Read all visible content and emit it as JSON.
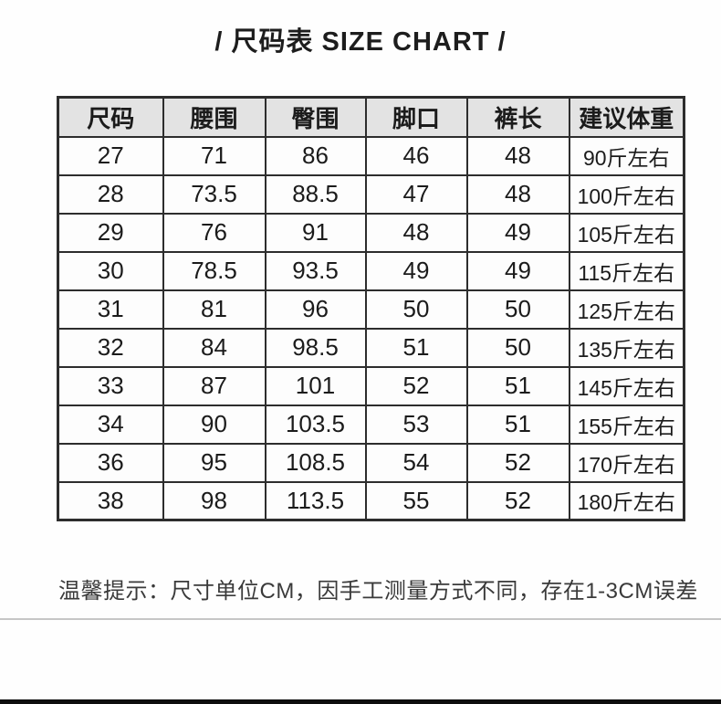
{
  "title": "/ 尺码表 SIZE CHART /",
  "chart_data": {
    "type": "table",
    "title": "/ 尺码表 SIZE CHART /",
    "columns": [
      "尺码",
      "腰围",
      "臀围",
      "脚口",
      "裤长",
      "建议体重"
    ],
    "rows": [
      [
        "27",
        "71",
        "86",
        "46",
        "48",
        "90斤左右"
      ],
      [
        "28",
        "73.5",
        "88.5",
        "47",
        "48",
        "100斤左右"
      ],
      [
        "29",
        "76",
        "91",
        "48",
        "49",
        "105斤左右"
      ],
      [
        "30",
        "78.5",
        "93.5",
        "49",
        "49",
        "115斤左右"
      ],
      [
        "31",
        "81",
        "96",
        "50",
        "50",
        "125斤左右"
      ],
      [
        "32",
        "84",
        "98.5",
        "51",
        "50",
        "135斤左右"
      ],
      [
        "33",
        "87",
        "101",
        "52",
        "51",
        "145斤左右"
      ],
      [
        "34",
        "90",
        "103.5",
        "53",
        "51",
        "155斤左右"
      ],
      [
        "36",
        "95",
        "108.5",
        "54",
        "52",
        "170斤左右"
      ],
      [
        "38",
        "98",
        "113.5",
        "55",
        "52",
        "180斤左右"
      ]
    ],
    "unit": "CM",
    "note": "温馨提示：尺寸单位CM，因手工测量方式不同，存在1-3CM误差"
  },
  "colors": {
    "header_bg": "#e3e3e3",
    "table_border": "#2d2d2d",
    "text": "#1b1b1b",
    "note_text": "#3a3a3a",
    "divider_line": "#c6c6c6",
    "bottom_bar": "#0d0d0d"
  }
}
